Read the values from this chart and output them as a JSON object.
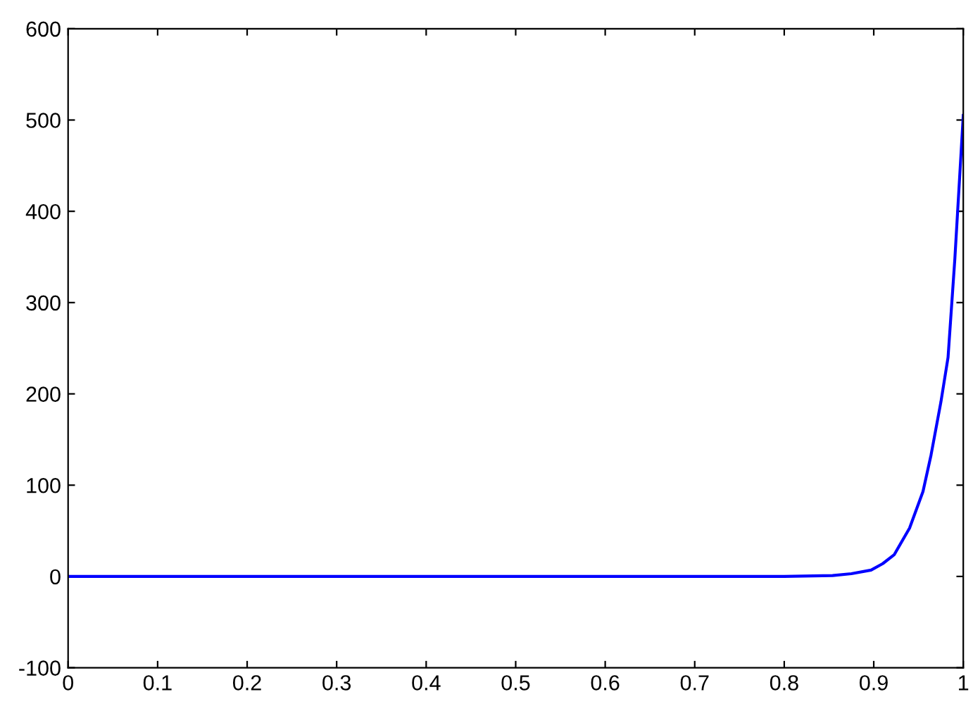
{
  "chart_data": {
    "type": "line",
    "series": [
      {
        "color": "#0000ff",
        "x": [
          0,
          0.2,
          0.4,
          0.6,
          0.8,
          0.854,
          0.875,
          0.897,
          0.91,
          0.923,
          0.94,
          0.955,
          0.964,
          0.975,
          0.983,
          0.9906,
          1
        ],
        "values": [
          0,
          0,
          0,
          0,
          0,
          1,
          3,
          7,
          14,
          24,
          53,
          93,
          133,
          191,
          240,
          348,
          505
        ]
      }
    ],
    "xlim": [
      0,
      1
    ],
    "ylim": [
      -100,
      600
    ],
    "xticks": [
      0,
      0.1,
      0.2,
      0.3,
      0.4,
      0.5,
      0.6,
      0.7,
      0.8,
      0.9,
      1
    ],
    "yticks": [
      -100,
      0,
      100,
      200,
      300,
      400,
      500,
      600
    ],
    "grid": false
  }
}
